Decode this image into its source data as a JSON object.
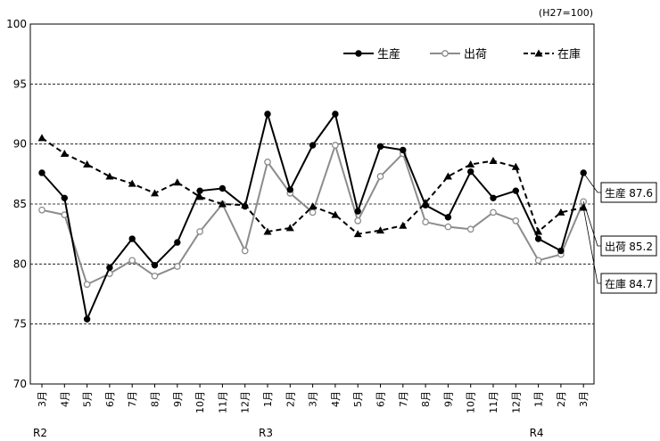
{
  "chart_data": {
    "type": "line",
    "unit_note": "(H27=100)",
    "ylim": [
      70,
      100
    ],
    "yticks": [
      "100",
      "95",
      "90",
      "85",
      "80",
      "75",
      "70"
    ],
    "grid": "horizontal dashed",
    "legend_position": "top-right",
    "categories": [
      "3月",
      "4月",
      "5月",
      "6月",
      "7月",
      "8月",
      "9月",
      "10月",
      "11月",
      "12月",
      "1月",
      "2月",
      "3月",
      "4月",
      "5月",
      "6月",
      "7月",
      "8月",
      "9月",
      "10月",
      "11月",
      "12月",
      "1月",
      "2月",
      "3月"
    ],
    "year_labels": [
      {
        "index": 0,
        "label": "R2"
      },
      {
        "index": 10,
        "label": "R3"
      },
      {
        "index": 22,
        "label": "R4"
      }
    ],
    "series": [
      {
        "name": "生産",
        "color": "#000000",
        "marker": "filled-circle",
        "dash": "solid",
        "values": [
          87.6,
          85.5,
          75.4,
          79.7,
          82.1,
          79.9,
          81.8,
          86.1,
          86.3,
          84.8,
          92.5,
          86.2,
          89.9,
          92.5,
          84.4,
          89.8,
          89.5,
          84.9,
          83.9,
          87.7,
          85.5,
          86.1,
          82.1,
          81.1,
          87.6
        ]
      },
      {
        "name": "出荷",
        "color": "#8c8c8c",
        "marker": "open-circle",
        "dash": "solid",
        "values": [
          84.5,
          84.1,
          78.3,
          79.2,
          80.3,
          79.0,
          79.8,
          82.7,
          85.0,
          81.1,
          88.5,
          85.9,
          84.3,
          89.9,
          83.6,
          87.3,
          89.2,
          83.5,
          83.1,
          82.9,
          84.3,
          83.6,
          80.3,
          80.8,
          85.2
        ]
      },
      {
        "name": "在庫",
        "color": "#000000",
        "marker": "filled-triangle",
        "dash": "dashed",
        "values": [
          90.5,
          89.2,
          88.3,
          87.3,
          86.7,
          85.9,
          86.8,
          85.6,
          85.0,
          84.9,
          82.7,
          83.0,
          84.8,
          84.1,
          82.5,
          82.8,
          83.2,
          85.1,
          87.3,
          88.3,
          88.6,
          88.1,
          82.7,
          84.3,
          84.7
        ]
      }
    ],
    "end_labels": [
      {
        "name": "生産",
        "value": "87.6"
      },
      {
        "name": "出荷",
        "value": "85.2"
      },
      {
        "name": "在庫",
        "value": "84.7"
      }
    ]
  }
}
